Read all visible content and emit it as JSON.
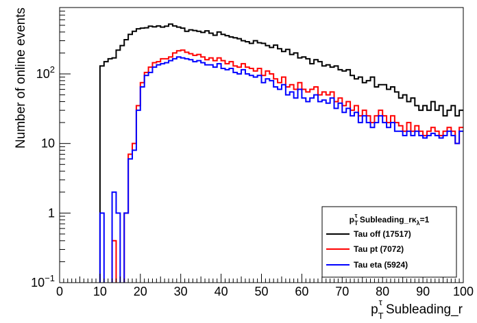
{
  "chart_data": {
    "type": "line",
    "drawstyle": "histogram-step",
    "title": "",
    "xlabel": "p_T^τ Subleading_r",
    "xlabel_parts": {
      "base": "p",
      "sub": "T",
      "sup": "τ",
      "rest": " Subleading_r"
    },
    "ylabel": "Number of online events",
    "xlim": [
      0,
      100
    ],
    "ylim": [
      0.1,
      900
    ],
    "yscale": "log",
    "grid": false,
    "legend_position": "bottom-right",
    "legend_header": {
      "base": "p",
      "sub": "T",
      "sup": "τ",
      "mid": " Subleading_r",
      "kappa": "κ",
      "lambda": "λ",
      "tail": "=1"
    },
    "x_ticks": [
      "0",
      "10",
      "20",
      "30",
      "40",
      "50",
      "60",
      "70",
      "80",
      "90",
      "100"
    ],
    "y_ticks": [
      {
        "value": 0.1,
        "base": "10",
        "exp": "−1"
      },
      {
        "value": 1,
        "label": "1"
      },
      {
        "value": 10,
        "label": "10"
      },
      {
        "value": 100,
        "base": "10",
        "exp": "2"
      }
    ],
    "bin_edges_start": 0,
    "bin_width": 1,
    "series": [
      {
        "name": "Tau off (17517)",
        "color": "#000000",
        "values": [
          0,
          0,
          0,
          0,
          0,
          0,
          0,
          0,
          0,
          0,
          130,
          150,
          165,
          170,
          220,
          255,
          310,
          370,
          410,
          445,
          455,
          460,
          485,
          475,
          490,
          470,
          485,
          520,
          490,
          470,
          455,
          410,
          430,
          420,
          410,
          395,
          415,
          385,
          360,
          400,
          370,
          355,
          340,
          330,
          320,
          300,
          290,
          275,
          300,
          280,
          275,
          255,
          240,
          260,
          230,
          210,
          225,
          190,
          200,
          170,
          175,
          165,
          140,
          160,
          150,
          130,
          135,
          125,
          130,
          115,
          110,
          115,
          95,
          85,
          90,
          75,
          80,
          90,
          65,
          70,
          70,
          60,
          65,
          55,
          45,
          50,
          40,
          45,
          35,
          30,
          35,
          30,
          40,
          30,
          35,
          25,
          30,
          35,
          25,
          30
        ]
      },
      {
        "name": "Tau pt (7072)",
        "color": "#ff0000",
        "values": [
          0,
          0,
          0,
          0,
          0,
          0,
          0,
          0,
          0,
          0,
          0,
          0,
          0,
          0,
          0,
          0,
          0,
          7,
          10,
          35,
          75,
          105,
          125,
          145,
          150,
          165,
          165,
          175,
          200,
          215,
          220,
          205,
          195,
          185,
          190,
          175,
          160,
          170,
          155,
          170,
          155,
          140,
          150,
          130,
          125,
          140,
          125,
          120,
          110,
          120,
          95,
          110,
          100,
          85,
          75,
          90,
          65,
          70,
          60,
          75,
          60,
          55,
          60,
          65,
          50,
          55,
          50,
          55,
          40,
          45,
          35,
          40,
          30,
          35,
          25,
          30,
          25,
          20,
          25,
          30,
          25,
          20,
          25,
          20,
          18,
          15,
          20,
          15,
          18,
          15,
          13,
          15,
          17,
          15,
          13,
          15,
          17,
          15,
          10,
          17
        ]
      },
      {
        "name": "Tau eta (5924)",
        "color": "#0000ff",
        "values": [
          0,
          0,
          0,
          0,
          0,
          0,
          0,
          0,
          0,
          0,
          1,
          0,
          0,
          0,
          0,
          0,
          0,
          6,
          8,
          30,
          65,
          95,
          105,
          125,
          135,
          140,
          145,
          155,
          165,
          175,
          170,
          165,
          160,
          150,
          155,
          145,
          135,
          135,
          125,
          140,
          120,
          115,
          120,
          105,
          100,
          115,
          100,
          95,
          90,
          95,
          75,
          85,
          80,
          65,
          60,
          70,
          50,
          55,
          45,
          60,
          45,
          40,
          45,
          50,
          40,
          42,
          38,
          45,
          32,
          38,
          28,
          32,
          25,
          28,
          20,
          25,
          20,
          17,
          20,
          25,
          20,
          17,
          20,
          15,
          15,
          13,
          15,
          13,
          15,
          13,
          12,
          13,
          14,
          13,
          12,
          13,
          15,
          13,
          10,
          15
        ]
      }
    ],
    "visual_overrides": {
      "Tau off (17517)": [],
      "Tau pt (7072)": [
        {
          "bin": 13,
          "value": 0.4
        },
        {
          "bin": 14,
          "value": 0.02
        },
        {
          "bin": 15,
          "value": 0.02
        },
        {
          "bin": 16,
          "value": 1
        }
      ],
      "Tau eta (5924)": [
        {
          "bin": 13,
          "value": 2
        },
        {
          "bin": 14,
          "value": 1
        },
        {
          "bin": 15,
          "value": 0.02
        },
        {
          "bin": 16,
          "value": 1
        }
      ]
    }
  }
}
